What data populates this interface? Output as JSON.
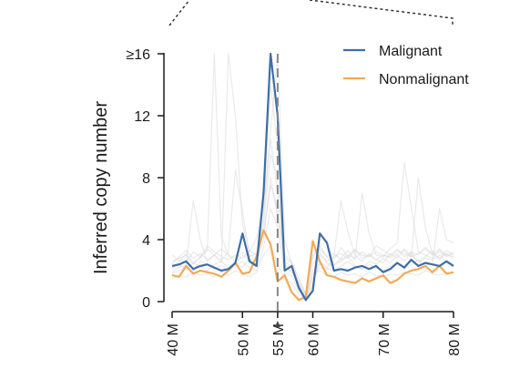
{
  "chart_data": {
    "type": "line",
    "ylabel": "Inferred copy number",
    "xlabel": "",
    "xlim": [
      40,
      80
    ],
    "ylim": [
      0,
      16
    ],
    "y_ticks": [
      {
        "value": 0,
        "label": "0"
      },
      {
        "value": 4,
        "label": "4"
      },
      {
        "value": 8,
        "label": "8"
      },
      {
        "value": 12,
        "label": "12"
      },
      {
        "value": 16,
        "label": "≥16"
      }
    ],
    "x_ticks": [
      {
        "value": 40,
        "label": "40 M"
      },
      {
        "value": 50,
        "label": "50 M"
      },
      {
        "value": 55,
        "label": "55 M"
      },
      {
        "value": 60,
        "label": "60 M"
      },
      {
        "value": 70,
        "label": "70 M"
      },
      {
        "value": 80,
        "label": "80 M"
      }
    ],
    "marker_position": 55,
    "legend_position": "top-right",
    "series": [
      {
        "name": "Malignant",
        "color": "#3f6ea6",
        "x": [
          40,
          41,
          42,
          43,
          44,
          45,
          46,
          47,
          48,
          49,
          50,
          51,
          52,
          53,
          54,
          55,
          56,
          57,
          58,
          59,
          60,
          61,
          62,
          63,
          64,
          65,
          66,
          67,
          68,
          69,
          70,
          71,
          72,
          73,
          74,
          75,
          76,
          77,
          78,
          79,
          80
        ],
        "values": [
          2.3,
          2.4,
          2.6,
          2.1,
          2.3,
          2.4,
          2.2,
          2.0,
          2.1,
          2.5,
          4.4,
          2.6,
          2.3,
          7.0,
          16.0,
          12.0,
          2.0,
          2.3,
          0.9,
          0.1,
          0.7,
          4.4,
          3.8,
          2.0,
          2.1,
          2.0,
          2.2,
          2.3,
          2.1,
          2.3,
          1.9,
          2.1,
          2.5,
          2.2,
          2.7,
          2.3,
          2.5,
          2.4,
          2.3,
          2.6,
          2.3
        ]
      },
      {
        "name": "Nonmalignant",
        "color": "#f0aa58",
        "x": [
          40,
          41,
          42,
          43,
          44,
          45,
          46,
          47,
          48,
          49,
          50,
          51,
          52,
          53,
          54,
          55,
          56,
          57,
          58,
          59,
          60,
          61,
          62,
          63,
          64,
          65,
          66,
          67,
          68,
          69,
          70,
          71,
          72,
          73,
          74,
          75,
          76,
          77,
          78,
          79,
          80
        ],
        "values": [
          1.7,
          1.6,
          2.3,
          1.8,
          2.0,
          1.9,
          1.8,
          1.6,
          2.0,
          2.5,
          1.8,
          1.9,
          2.9,
          4.6,
          3.7,
          1.3,
          1.7,
          0.6,
          0.1,
          0.3,
          3.9,
          2.6,
          1.7,
          1.6,
          1.4,
          1.3,
          1.2,
          1.5,
          1.3,
          1.5,
          1.7,
          1.2,
          1.4,
          1.8,
          2.0,
          2.1,
          2.3,
          1.9,
          2.3,
          1.8,
          1.9
        ]
      }
    ],
    "background_series": [
      [
        2.1,
        2.6,
        3.1,
        2.4,
        2.9,
        3.3,
        16.0,
        4.2,
        3.0,
        2.5,
        2.2,
        2.8,
        2.4,
        5.0,
        9.5,
        8.0,
        2.2,
        1.9,
        1.2,
        0.6,
        2.8,
        3.6,
        2.9,
        2.4,
        2.6,
        2.9,
        3.4,
        2.8,
        3.0,
        2.7,
        2.5,
        3.1,
        2.8,
        3.4,
        3.0,
        2.6,
        2.9,
        3.3,
        2.7,
        3.1,
        2.8
      ],
      [
        1.9,
        2.2,
        2.4,
        6.5,
        4.0,
        2.6,
        3.0,
        2.5,
        16.0,
        12.0,
        5.0,
        3.2,
        4.1,
        6.0,
        14.0,
        10.0,
        3.0,
        2.6,
        1.4,
        0.4,
        1.5,
        2.2,
        2.0,
        2.7,
        3.5,
        2.9,
        2.3,
        2.1,
        2.6,
        2.4,
        2.8,
        2.5,
        3.0,
        2.6,
        3.2,
        2.5,
        2.8,
        2.7,
        3.0,
        2.6,
        2.4
      ],
      [
        2.6,
        2.8,
        3.0,
        2.5,
        2.8,
        3.4,
        3.0,
        2.7,
        3.2,
        8.5,
        5.8,
        3.0,
        2.6,
        4.0,
        8.0,
        5.5,
        2.6,
        2.2,
        0.8,
        0.2,
        1.0,
        3.2,
        2.5,
        2.3,
        2.8,
        3.3,
        2.7,
        7.0,
        4.4,
        3.0,
        2.9,
        3.4,
        3.8,
        9.0,
        6.1,
        3.2,
        3.0,
        2.8,
        3.3,
        3.0,
        2.9
      ],
      [
        1.8,
        2.0,
        2.2,
        2.5,
        2.3,
        2.0,
        2.4,
        2.6,
        2.2,
        2.4,
        3.0,
        2.7,
        2.5,
        5.5,
        11.0,
        16.0,
        4.0,
        2.4,
        1.1,
        0.3,
        1.2,
        2.6,
        2.2,
        2.9,
        6.5,
        4.5,
        3.0,
        2.6,
        3.1,
        2.7,
        3.0,
        2.9,
        3.3,
        3.1,
        2.9,
        8.0,
        4.8,
        3.1,
        3.4,
        3.0,
        3.2
      ],
      [
        2.2,
        2.4,
        2.1,
        2.0,
        2.6,
        2.4,
        2.1,
        2.3,
        2.0,
        2.3,
        2.6,
        2.2,
        2.0,
        3.5,
        6.0,
        4.8,
        1.8,
        1.7,
        0.7,
        0.2,
        2.0,
        2.4,
        2.1,
        2.0,
        2.3,
        2.6,
        2.2,
        2.1,
        2.4,
        2.2,
        2.0,
        2.3,
        2.5,
        2.1,
        2.4,
        2.7,
        2.3,
        2.5,
        6.0,
        4.0,
        3.8
      ],
      [
        3.0,
        2.7,
        2.5,
        3.2,
        2.9,
        3.6,
        3.2,
        2.9,
        2.7,
        3.0,
        2.8,
        3.3,
        3.0,
        6.5,
        10.5,
        7.0,
        2.8,
        2.5,
        1.5,
        0.5,
        3.0,
        3.4,
        2.9,
        3.1,
        2.7,
        3.0,
        2.8,
        3.2,
        2.9,
        3.6,
        3.3,
        3.0,
        3.4,
        2.9,
        3.2,
        3.0,
        3.5,
        3.1,
        2.8,
        3.3,
        3.0
      ],
      [
        1.5,
        1.7,
        1.6,
        1.9,
        1.7,
        1.8,
        1.6,
        1.9,
        1.7,
        2.0,
        1.8,
        1.6,
        1.9,
        3.0,
        3.6,
        2.4,
        1.4,
        1.2,
        0.5,
        0.1,
        1.8,
        2.0,
        1.7,
        1.6,
        1.9,
        1.7,
        1.8,
        1.6,
        1.9,
        1.7,
        1.6,
        1.8,
        1.7,
        1.9,
        1.8,
        1.7,
        2.0,
        1.8,
        1.7,
        1.9,
        1.8
      ],
      [
        2.4,
        2.9,
        3.3,
        2.8,
        3.1,
        2.7,
        3.0,
        3.4,
        3.0,
        2.8,
        3.2,
        2.9,
        3.1,
        4.5,
        7.5,
        6.0,
        2.4,
        2.0,
        1.0,
        0.3,
        2.4,
        3.0,
        2.6,
        2.9,
        3.1,
        2.8,
        3.3,
        3.0,
        2.9,
        3.2,
        3.0,
        2.8,
        3.1,
        3.3,
        2.9,
        3.1,
        3.4,
        3.0,
        3.2,
        2.9,
        3.1
      ]
    ]
  }
}
